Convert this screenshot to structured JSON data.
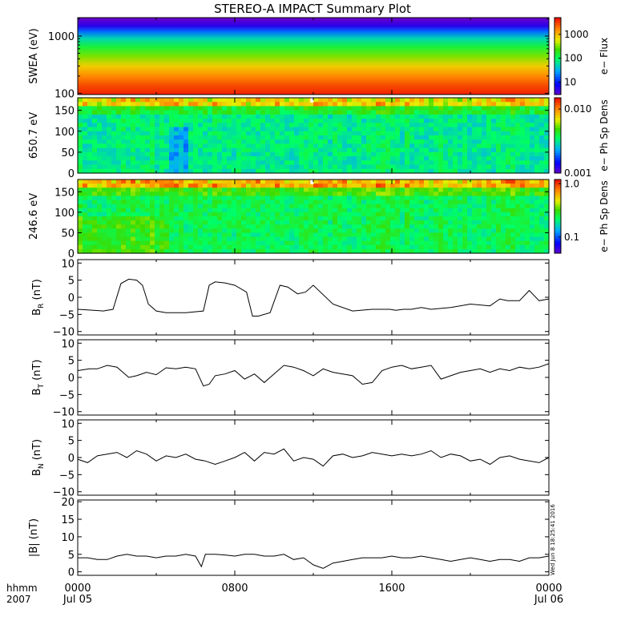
{
  "title": "STEREO-A IMPACT Summary Plot",
  "footer": {
    "time_label": "hhmm",
    "year_label": "2007",
    "stamp": "Wed Jun  8 18:25:41 2016"
  },
  "x_axis": {
    "range_hours": [
      0,
      24
    ],
    "ticks": [
      {
        "hour": 0,
        "time": "0000",
        "date": "Jul 05"
      },
      {
        "hour": 8,
        "time": "0800",
        "date": ""
      },
      {
        "hour": 16,
        "time": "1600",
        "date": ""
      },
      {
        "hour": 24,
        "time": "0000",
        "date": "Jul 06"
      }
    ]
  },
  "chart_data": [
    {
      "type": "heatmap",
      "id": "swea",
      "ylabel": "SWEA (eV)",
      "y_scale": "log",
      "ylim": [
        95,
        2100
      ],
      "y_ticks": [
        {
          "v": 100,
          "label": "100"
        },
        {
          "v": 1000,
          "label": "1000"
        }
      ],
      "colorbar": {
        "label": "e− Flux",
        "scale": "log",
        "range": [
          3,
          5000
        ],
        "ticks": [
          {
            "v": 10,
            "label": "10"
          },
          {
            "v": 100,
            "label": "100"
          },
          {
            "v": 1000,
            "label": "1000"
          }
        ]
      },
      "spectrum": [
        {
          "energy": 2100,
          "flux": 3
        },
        {
          "energy": 1500,
          "flux": 6
        },
        {
          "energy": 1200,
          "flux": 20
        },
        {
          "energy": 900,
          "flux": 60
        },
        {
          "energy": 650,
          "flux": 150
        },
        {
          "energy": 450,
          "flux": 350
        },
        {
          "energy": 300,
          "flux": 900
        },
        {
          "energy": 200,
          "flux": 1800
        },
        {
          "energy": 140,
          "flux": 3000
        },
        {
          "energy": 95,
          "flux": 4500
        }
      ]
    },
    {
      "type": "heatmap",
      "id": "pad650",
      "ylabel": "650.7 eV",
      "ylim": [
        0,
        180
      ],
      "y_ticks": [
        {
          "v": 0,
          "label": "0"
        },
        {
          "v": 50,
          "label": "50"
        },
        {
          "v": 100,
          "label": "100"
        },
        {
          "v": 150,
          "label": "150"
        }
      ],
      "colorbar": {
        "label": "e− Ph Sp Dens",
        "scale": "log",
        "range": [
          0.001,
          0.015
        ],
        "ticks": [
          {
            "v": 0.001,
            "label": "0.001"
          },
          {
            "v": 0.01,
            "label": "0.010"
          }
        ]
      }
    },
    {
      "type": "heatmap",
      "id": "pad246",
      "ylabel": "246.6 eV",
      "ylim": [
        0,
        180
      ],
      "y_ticks": [
        {
          "v": 0,
          "label": "0"
        },
        {
          "v": 50,
          "label": "50"
        },
        {
          "v": 100,
          "label": "100"
        },
        {
          "v": 150,
          "label": "150"
        }
      ],
      "colorbar": {
        "label": "e− Ph Sp Dens",
        "scale": "log",
        "range": [
          0.05,
          1.2
        ],
        "ticks": [
          {
            "v": 0.1,
            "label": "0.1"
          },
          {
            "v": 1,
            "label": "1.0"
          }
        ]
      }
    },
    {
      "type": "line",
      "id": "br",
      "ylabel_main": "B",
      "ylabel_sub": "R",
      "ylabel_unit": "(nT)",
      "ylim": [
        -11,
        11
      ],
      "y_ticks": [
        {
          "v": -10,
          "label": "−10"
        },
        {
          "v": -5,
          "label": "−5"
        },
        {
          "v": 0,
          "label": "0"
        },
        {
          "v": 5,
          "label": "5"
        },
        {
          "v": 10,
          "label": "10"
        }
      ],
      "x": [
        0,
        0.8,
        1.3,
        1.8,
        2.2,
        2.6,
        3.0,
        3.3,
        3.6,
        4.0,
        4.5,
        5.5,
        6.4,
        6.7,
        7.0,
        7.5,
        8.0,
        8.6,
        8.9,
        9.2,
        9.8,
        10.3,
        10.7,
        11.2,
        11.6,
        12.0,
        13.0,
        14.0,
        15.0,
        15.9,
        16.2,
        16.6,
        17.0,
        17.5,
        18.0,
        19.0,
        20.0,
        21.0,
        21.5,
        21.9,
        22.5,
        23.0,
        23.5,
        24.0
      ],
      "values": [
        -3.5,
        -3.8,
        -4.0,
        -3.5,
        4.0,
        5.3,
        5.0,
        3.5,
        -2.0,
        -4.0,
        -4.5,
        -4.5,
        -4.0,
        3.5,
        4.5,
        4.2,
        3.5,
        1.5,
        -5.5,
        -5.5,
        -4.5,
        3.5,
        3.0,
        1.0,
        1.5,
        3.5,
        -2.0,
        -4.0,
        -3.5,
        -3.5,
        -3.8,
        -3.5,
        -3.5,
        -3.0,
        -3.5,
        -3.0,
        -2.0,
        -2.5,
        -0.5,
        -1.0,
        -1.0,
        2.0,
        -1.0,
        -0.5
      ]
    },
    {
      "type": "line",
      "id": "bt",
      "ylabel_main": "B",
      "ylabel_sub": "T",
      "ylabel_unit": "(nT)",
      "ylim": [
        -11,
        11
      ],
      "y_ticks": [
        {
          "v": -10,
          "label": "−10"
        },
        {
          "v": -5,
          "label": "−5"
        },
        {
          "v": 0,
          "label": "0"
        },
        {
          "v": 5,
          "label": "5"
        },
        {
          "v": 10,
          "label": "10"
        }
      ],
      "x": [
        0,
        0.6,
        1.0,
        1.5,
        2.0,
        2.6,
        3.0,
        3.5,
        4.0,
        4.5,
        5.0,
        5.5,
        6.0,
        6.4,
        6.7,
        7.0,
        7.5,
        8.0,
        8.5,
        9.0,
        9.5,
        10.0,
        10.5,
        11.0,
        11.5,
        12.0,
        12.5,
        13.0,
        13.5,
        14.0,
        14.5,
        15.0,
        15.5,
        16.0,
        16.5,
        17.0,
        17.5,
        18.0,
        18.5,
        19.0,
        19.5,
        20.0,
        20.5,
        21.0,
        21.5,
        22.0,
        22.5,
        23.0,
        23.5,
        24.0
      ],
      "values": [
        2.0,
        2.5,
        2.5,
        3.5,
        3.0,
        0.0,
        0.5,
        1.5,
        0.8,
        2.8,
        2.5,
        3.0,
        2.5,
        -2.5,
        -2.0,
        0.5,
        1.0,
        2.0,
        -0.5,
        1.0,
        -1.5,
        1.0,
        3.5,
        3.0,
        2.0,
        0.5,
        2.5,
        1.5,
        1.0,
        0.5,
        -2.0,
        -1.5,
        2.0,
        3.0,
        3.5,
        2.5,
        3.0,
        3.5,
        -0.5,
        0.5,
        1.5,
        2.0,
        2.5,
        1.5,
        2.5,
        2.0,
        3.0,
        2.5,
        3.0,
        4.0
      ]
    },
    {
      "type": "line",
      "id": "bn",
      "ylabel_main": "B",
      "ylabel_sub": "N",
      "ylabel_unit": "(nT)",
      "ylim": [
        -11,
        11
      ],
      "y_ticks": [
        {
          "v": -10,
          "label": "−10"
        },
        {
          "v": -5,
          "label": "−5"
        },
        {
          "v": 0,
          "label": "0"
        },
        {
          "v": 5,
          "label": "5"
        },
        {
          "v": 10,
          "label": "10"
        }
      ],
      "x": [
        0,
        0.5,
        1.0,
        1.5,
        2.0,
        2.5,
        3.0,
        3.5,
        4.0,
        4.5,
        5.0,
        5.5,
        6.0,
        6.5,
        7.0,
        7.5,
        8.0,
        8.5,
        9.0,
        9.5,
        10.0,
        10.5,
        11.0,
        11.5,
        12.0,
        12.5,
        13.0,
        13.5,
        14.0,
        14.5,
        15.0,
        15.5,
        16.0,
        16.5,
        17.0,
        17.5,
        18.0,
        18.5,
        19.0,
        19.5,
        20.0,
        20.5,
        21.0,
        21.5,
        22.0,
        22.5,
        23.0,
        23.5,
        24.0
      ],
      "values": [
        -0.5,
        -1.5,
        0.5,
        1.0,
        1.5,
        0.0,
        2.0,
        1.0,
        -1.0,
        0.5,
        0.0,
        1.0,
        -0.5,
        -1.0,
        -2.0,
        -1.0,
        0.0,
        1.5,
        -1.0,
        1.5,
        1.0,
        2.5,
        -1.0,
        0.0,
        -0.5,
        -2.5,
        0.5,
        1.0,
        0.0,
        0.5,
        1.5,
        1.0,
        0.5,
        1.0,
        0.5,
        1.0,
        2.0,
        0.0,
        1.0,
        0.5,
        -1.0,
        -0.5,
        -2.0,
        0.0,
        0.5,
        -0.5,
        -1.0,
        -1.5,
        0.0
      ]
    },
    {
      "type": "line",
      "id": "bmag",
      "ylabel": "|B| (nT)",
      "ylim": [
        -1,
        20.5
      ],
      "y_ticks": [
        {
          "v": 0,
          "label": "0"
        },
        {
          "v": 5,
          "label": "5"
        },
        {
          "v": 10,
          "label": "10"
        },
        {
          "v": 15,
          "label": "15"
        },
        {
          "v": 20,
          "label": "20"
        }
      ],
      "x": [
        0,
        0.5,
        1.0,
        1.5,
        2.0,
        2.5,
        3.0,
        3.5,
        4.0,
        4.5,
        5.0,
        5.5,
        6.0,
        6.3,
        6.5,
        7.0,
        7.5,
        8.0,
        8.5,
        9.0,
        9.5,
        10.0,
        10.5,
        11.0,
        11.5,
        12.0,
        12.5,
        13.0,
        13.5,
        14.0,
        14.5,
        15.0,
        15.5,
        16.0,
        16.5,
        17.0,
        17.5,
        18.0,
        18.5,
        19.0,
        19.5,
        20.0,
        20.5,
        21.0,
        21.5,
        22.0,
        22.5,
        23.0,
        23.5,
        24.0
      ],
      "values": [
        4.0,
        4.0,
        3.5,
        3.5,
        4.5,
        5.0,
        4.5,
        4.5,
        4.0,
        4.5,
        4.5,
        5.0,
        4.5,
        1.5,
        5.0,
        5.0,
        4.8,
        4.5,
        5.0,
        5.0,
        4.5,
        4.5,
        5.0,
        3.5,
        4.0,
        2.0,
        1.0,
        2.5,
        3.0,
        3.5,
        4.0,
        4.0,
        4.0,
        4.5,
        4.0,
        4.0,
        4.5,
        4.0,
        3.5,
        3.0,
        3.5,
        4.0,
        3.5,
        3.0,
        3.5,
        3.5,
        3.0,
        4.0,
        4.0,
        4.5
      ]
    }
  ]
}
